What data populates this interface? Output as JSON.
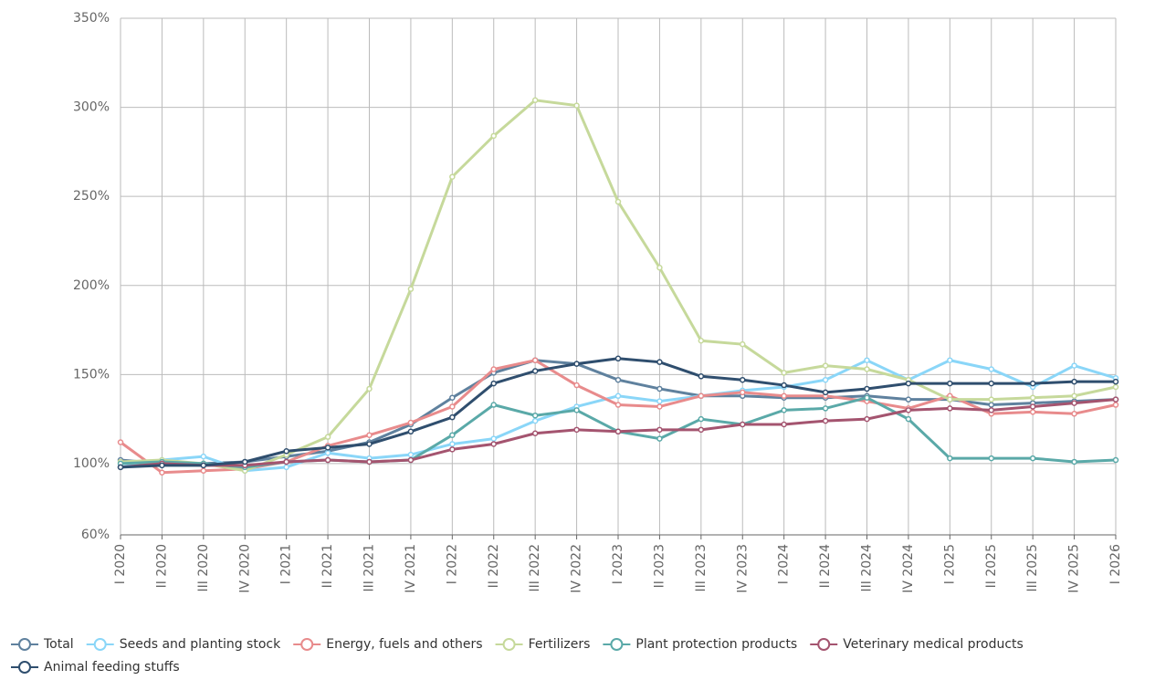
{
  "chart_data": {
    "type": "line",
    "categories": [
      "I 2020",
      "II 2020",
      "III 2020",
      "IV 2020",
      "I 2021",
      "II 2021",
      "III 2021",
      "IV 2021",
      "I 2022",
      "II 2022",
      "III 2022",
      "IV 2022",
      "I 2023",
      "II 2023",
      "III 2023",
      "IV 2023",
      "I 2024",
      "II 2024",
      "III 2024",
      "IV 2024",
      "I 2025",
      "II 2025",
      "III 2025",
      "IV 2025",
      "I 2026"
    ],
    "series": [
      {
        "name": "Total",
        "color": "#5f819e",
        "values": [
          102,
          100,
          100,
          101,
          104,
          107,
          112,
          122,
          137,
          151,
          158,
          156,
          147,
          142,
          138,
          138,
          137,
          137,
          138,
          136,
          136,
          133,
          134,
          135,
          136
        ]
      },
      {
        "name": "Seeds and planting stock",
        "color": "#8ad6f8",
        "values": [
          98,
          102,
          104,
          96,
          98,
          106,
          103,
          105,
          111,
          114,
          124,
          132,
          138,
          135,
          138,
          141,
          143,
          147,
          158,
          147,
          158,
          153,
          143,
          155,
          148
        ]
      },
      {
        "name": "Energy, fuels and others",
        "color": "#e88b8c",
        "values": [
          112,
          95,
          96,
          97,
          101,
          110,
          116,
          123,
          132,
          153,
          158,
          144,
          133,
          132,
          138,
          140,
          138,
          138,
          135,
          131,
          138,
          128,
          129,
          128,
          133
        ]
      },
      {
        "name": "Fertilizers",
        "color": "#c6d99b",
        "values": [
          101,
          102,
          100,
          96,
          105,
          115,
          142,
          198,
          261,
          284,
          304,
          301,
          247,
          210,
          169,
          167,
          151,
          155,
          153,
          147,
          136,
          136,
          137,
          138,
          143
        ]
      },
      {
        "name": "Plant protection products",
        "color": "#5aa9a8",
        "values": [
          100,
          101,
          100,
          98,
          101,
          102,
          101,
          102,
          116,
          133,
          127,
          130,
          118,
          114,
          125,
          122,
          130,
          131,
          137,
          125,
          103,
          103,
          103,
          101,
          102
        ]
      },
      {
        "name": "Veterinary medical products",
        "color": "#a4546f",
        "values": [
          98,
          100,
          99,
          99,
          101,
          102,
          101,
          102,
          108,
          111,
          117,
          119,
          118,
          119,
          119,
          122,
          122,
          124,
          125,
          130,
          131,
          130,
          132,
          134,
          136
        ]
      },
      {
        "name": "Animal feeding stuffs",
        "color": "#2f4e6e",
        "values": [
          98,
          99,
          99,
          101,
          107,
          109,
          111,
          118,
          126,
          145,
          152,
          156,
          159,
          157,
          149,
          147,
          144,
          140,
          142,
          145,
          145,
          145,
          145,
          146,
          146
        ]
      }
    ],
    "ylim": [
      60,
      350
    ],
    "yticks": [
      {
        "value": 60,
        "label": "60%"
      },
      {
        "value": 100,
        "label": "100%"
      },
      {
        "value": 150,
        "label": "150%"
      },
      {
        "value": 200,
        "label": "200%"
      },
      {
        "value": 250,
        "label": "250%"
      },
      {
        "value": 300,
        "label": "300%"
      },
      {
        "value": 350,
        "label": "350%"
      }
    ],
    "grid": true,
    "legend": "bottom"
  }
}
